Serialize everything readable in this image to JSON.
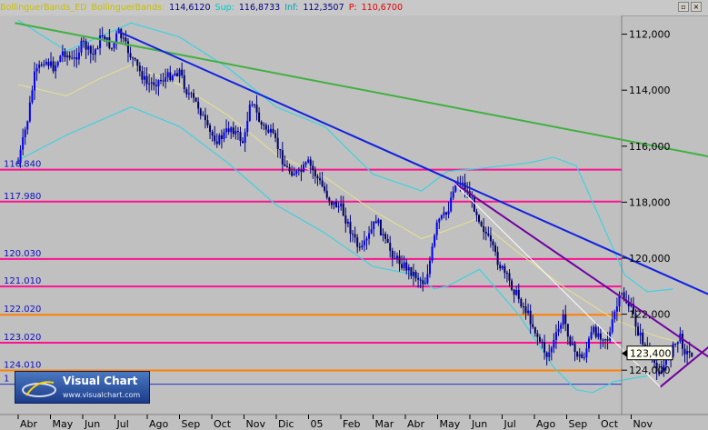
{
  "header": {
    "study1": "BollinguerBands_ED",
    "study2": "BollinguerBands:",
    "mid_value": "114,6120",
    "sup_label": "Sup:",
    "sup_value": "116,8733",
    "inf_label": "Inf:",
    "inf_value": "112,3507",
    "p_label": "P:",
    "p_value": "110,6700",
    "btn_restore": "▫",
    "btn_close": "×"
  },
  "logo": {
    "name": "Visual Chart",
    "url": "www.visualchart.com"
  },
  "colors": {
    "background": "#c0c0c0",
    "candles": "#000080",
    "upper_band": "#40d0e0",
    "middle_band": "#e8e090",
    "pink_levels": "#ff1090",
    "orange_levels": "#ff8000",
    "trend_green": "#40b040",
    "trend_blue": "#1020e0",
    "trend_purple": "#7000a0"
  },
  "chart_data": {
    "type": "candlestick",
    "y_axis_inverted": true,
    "ylim": [
      111.2,
      125.0
    ],
    "y_ticks": [
      "112,000",
      "114,000",
      "116,000",
      "118,000",
      "120,000",
      "122,000",
      "124,000"
    ],
    "y_tick_values": [
      112,
      114,
      116,
      118,
      120,
      122,
      124
    ],
    "x_ticks": [
      "Abr",
      "May",
      "Jun",
      "Jul",
      "Ago",
      "Sep",
      "Oct",
      "Nov",
      "Dic",
      "05",
      "Feb",
      "Mar",
      "Abr",
      "May",
      "Jun",
      "Jul",
      "Ago",
      "Sep",
      "Oct",
      "Nov"
    ],
    "level_labels": [
      "116.840",
      "117.980",
      "120.030",
      "121.010",
      "122.020",
      "123.020",
      "124.010",
      "1"
    ],
    "pink_levels": [
      116.84,
      117.98,
      120.03,
      121.01,
      123.02
    ],
    "orange_levels": [
      122.02,
      124.01
    ],
    "blue_level": 124.5,
    "current_price_label": "123,400",
    "current_price": 123.4,
    "price_path": [
      [
        0,
        116.6
      ],
      [
        0.3,
        115.0
      ],
      [
        0.5,
        113.5
      ],
      [
        0.8,
        112.9
      ],
      [
        1.1,
        113.2
      ],
      [
        1.4,
        112.6
      ],
      [
        1.7,
        113.0
      ],
      [
        2.0,
        112.3
      ],
      [
        2.3,
        112.8
      ],
      [
        2.6,
        112.0
      ],
      [
        2.9,
        112.5
      ],
      [
        3.1,
        111.9
      ],
      [
        3.5,
        112.8
      ],
      [
        4.0,
        113.8
      ],
      [
        4.5,
        113.6
      ],
      [
        5.0,
        113.3
      ],
      [
        5.2,
        114.0
      ],
      [
        5.6,
        114.6
      ],
      [
        5.9,
        115.5
      ],
      [
        6.2,
        115.8
      ],
      [
        6.6,
        115.3
      ],
      [
        7.0,
        115.9
      ],
      [
        7.2,
        114.2
      ],
      [
        7.5,
        115.2
      ],
      [
        7.8,
        115.5
      ],
      [
        8.0,
        115.9
      ],
      [
        8.3,
        116.8
      ],
      [
        8.7,
        117.0
      ],
      [
        9.0,
        116.6
      ],
      [
        9.4,
        117.4
      ],
      [
        9.7,
        118.0
      ],
      [
        10.0,
        118.2
      ],
      [
        10.3,
        119.0
      ],
      [
        10.6,
        119.8
      ],
      [
        10.8,
        119.4
      ],
      [
        11.1,
        118.6
      ],
      [
        11.4,
        119.5
      ],
      [
        11.7,
        120.0
      ],
      [
        12.0,
        120.3
      ],
      [
        12.3,
        120.6
      ],
      [
        12.6,
        120.9
      ],
      [
        12.8,
        119.9
      ],
      [
        13.0,
        118.7
      ],
      [
        13.3,
        118.4
      ],
      [
        13.5,
        117.4
      ],
      [
        13.7,
        117.2
      ],
      [
        14.0,
        117.8
      ],
      [
        14.3,
        118.6
      ],
      [
        14.6,
        119.4
      ],
      [
        14.9,
        120.2
      ],
      [
        15.2,
        120.8
      ],
      [
        15.5,
        121.4
      ],
      [
        15.8,
        122.0
      ],
      [
        16.1,
        122.8
      ],
      [
        16.4,
        123.5
      ],
      [
        16.6,
        123.0
      ],
      [
        16.9,
        122.1
      ],
      [
        17.2,
        123.3
      ],
      [
        17.5,
        123.6
      ],
      [
        17.8,
        122.6
      ],
      [
        18.0,
        122.7
      ],
      [
        18.3,
        122.9
      ],
      [
        18.5,
        121.9
      ],
      [
        18.7,
        121.3
      ],
      [
        19.0,
        121.8
      ],
      [
        19.2,
        122.6
      ],
      [
        19.5,
        123.3
      ],
      [
        19.7,
        123.7
      ],
      [
        19.9,
        124.1
      ],
      [
        20.1,
        123.6
      ],
      [
        20.3,
        123.2
      ],
      [
        20.5,
        122.8
      ],
      [
        20.7,
        123.4
      ],
      [
        20.9,
        123.4
      ]
    ],
    "middle_band_path": [
      [
        0,
        113.8
      ],
      [
        1.5,
        114.2
      ],
      [
        2.5,
        113.6
      ],
      [
        3.5,
        113.1
      ],
      [
        5.0,
        113.8
      ],
      [
        6.5,
        114.9
      ],
      [
        8.0,
        116.3
      ],
      [
        9.5,
        117.1
      ],
      [
        11.0,
        118.3
      ],
      [
        12.5,
        119.3
      ],
      [
        13.3,
        119.0
      ],
      [
        14.2,
        118.6
      ],
      [
        15.5,
        119.8
      ],
      [
        17.0,
        121.1
      ],
      [
        18.5,
        122.2
      ],
      [
        19.8,
        122.8
      ],
      [
        20.5,
        123.0
      ]
    ],
    "upper_band_path": [
      [
        0,
        111.5
      ],
      [
        1.5,
        112.6
      ],
      [
        2.5,
        112.1
      ],
      [
        3.5,
        111.6
      ],
      [
        5.0,
        112.1
      ],
      [
        6.5,
        113.2
      ],
      [
        8.0,
        114.6
      ],
      [
        9.5,
        115.3
      ],
      [
        11.0,
        117.0
      ],
      [
        12.5,
        117.6
      ],
      [
        13.3,
        116.9
      ],
      [
        14.3,
        116.8
      ],
      [
        15.8,
        116.6
      ],
      [
        16.6,
        116.4
      ],
      [
        17.3,
        116.7
      ],
      [
        18.0,
        118.5
      ],
      [
        18.8,
        120.6
      ],
      [
        19.5,
        121.2
      ],
      [
        20.3,
        121.1
      ]
    ],
    "lower_band_path": [
      [
        0,
        116.5
      ],
      [
        1.5,
        115.6
      ],
      [
        2.5,
        115.1
      ],
      [
        3.5,
        114.6
      ],
      [
        5.0,
        115.3
      ],
      [
        6.5,
        116.6
      ],
      [
        8.0,
        118.1
      ],
      [
        9.5,
        119.1
      ],
      [
        11.0,
        120.3
      ],
      [
        12.3,
        120.6
      ],
      [
        12.9,
        121.1
      ],
      [
        13.3,
        121.0
      ],
      [
        14.3,
        120.4
      ],
      [
        15.5,
        122.0
      ],
      [
        16.6,
        123.9
      ],
      [
        17.3,
        124.7
      ],
      [
        17.8,
        124.8
      ],
      [
        18.5,
        124.4
      ],
      [
        19.5,
        124.2
      ]
    ],
    "trend_lines": [
      {
        "color": "green",
        "from": [
          -0.1,
          111.6
        ],
        "to": [
          22.0,
          116.5
        ]
      },
      {
        "color": "blue",
        "from": [
          3.1,
          111.9
        ],
        "to": [
          22.0,
          121.6
        ]
      },
      {
        "color": "purple",
        "from": [
          13.5,
          117.3
        ],
        "to": [
          22.0,
          124.0
        ]
      },
      {
        "color": "purple",
        "from": [
          19.9,
          124.6
        ],
        "to": [
          22.0,
          122.6
        ]
      },
      {
        "color": "white",
        "from": [
          13.5,
          117.3
        ],
        "to": [
          19.9,
          124.6
        ]
      }
    ]
  }
}
